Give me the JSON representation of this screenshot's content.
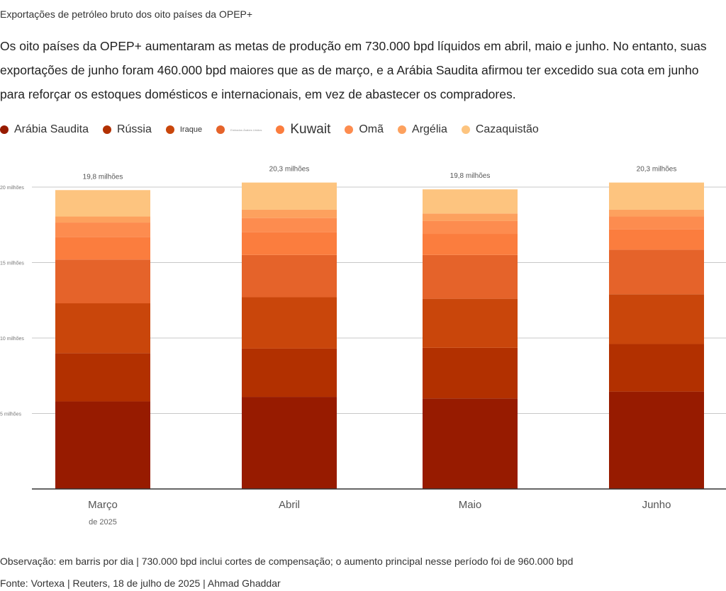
{
  "header": {
    "title": "Exportações de petróleo bruto dos oito países da OPEP+",
    "subtitle": "Os oito países da OPEP+ aumentaram as metas de produção em 730.000 bpd líquidos em abril, maio e junho. No entanto, suas exportações de junho foram 460.000 bpd maiores que as de março, e a Arábia Saudita afirmou ter excedido sua cota em junho para reforçar os estoques domésticos e internacionais, em vez de abastecer os compradores."
  },
  "legend": [
    {
      "label": "Arábia Saudita",
      "color": "#971b00",
      "style": "normal"
    },
    {
      "label": "Rússia",
      "color": "#b23000",
      "style": "normal"
    },
    {
      "label": "Iraque",
      "color": "#c9460b",
      "style": "small"
    },
    {
      "label": "Emirados Árabes Unidos",
      "color": "#e5632a",
      "style": "tiny"
    },
    {
      "label": "Kuwait",
      "color": "#fb7d3e",
      "style": "large"
    },
    {
      "label": "Omã",
      "color": "#fd8c4f",
      "style": "normal"
    },
    {
      "label": "Argélia",
      "color": "#fda15e",
      "style": "normal"
    },
    {
      "label": "Cazaquistão",
      "color": "#fdc47f",
      "style": "normal"
    }
  ],
  "chart_data": {
    "type": "bar",
    "stacked": true,
    "categories": [
      "Março",
      "Abril",
      "Maio",
      "Junho"
    ],
    "category_sublabels": [
      "de 2025",
      "",
      "",
      ""
    ],
    "totals_labels": [
      "19,8 milhões",
      "20,3 milhões",
      "19,8 milhões",
      "20,3 milhões"
    ],
    "y_ticks": [
      5,
      10,
      15,
      20
    ],
    "y_tick_labels": [
      "5 milhões",
      "10 milhões",
      "15 milhões",
      "20 milhões"
    ],
    "ylim": [
      0,
      21
    ],
    "grid": true,
    "legend_position": "top",
    "series": [
      {
        "name": "Arábia Saudita",
        "values": [
          5.8,
          6.1,
          6.0,
          6.45
        ]
      },
      {
        "name": "Rússia",
        "values": [
          3.2,
          3.2,
          3.35,
          3.15
        ]
      },
      {
        "name": "Iraque",
        "values": [
          3.3,
          3.4,
          3.25,
          3.3
        ]
      },
      {
        "name": "Emirados Árabes Unidos",
        "values": [
          2.9,
          2.8,
          2.9,
          2.95
        ]
      },
      {
        "name": "Kuwait",
        "values": [
          1.5,
          1.5,
          1.4,
          1.35
        ]
      },
      {
        "name": "Omã",
        "values": [
          0.95,
          0.95,
          0.85,
          0.85
        ]
      },
      {
        "name": "Argélia",
        "values": [
          0.4,
          0.55,
          0.5,
          0.45
        ]
      },
      {
        "name": "Cazaquistão",
        "values": [
          1.75,
          1.8,
          1.6,
          1.8
        ]
      }
    ]
  },
  "footer": {
    "note": "Observação: em barris por dia | 730.000 bpd inclui cortes de compensação; o aumento principal nesse período foi de 960.000 bpd",
    "source": "Fonte: Vortexa | Reuters, 18 de julho de 2025 | Ahmad Ghaddar"
  }
}
